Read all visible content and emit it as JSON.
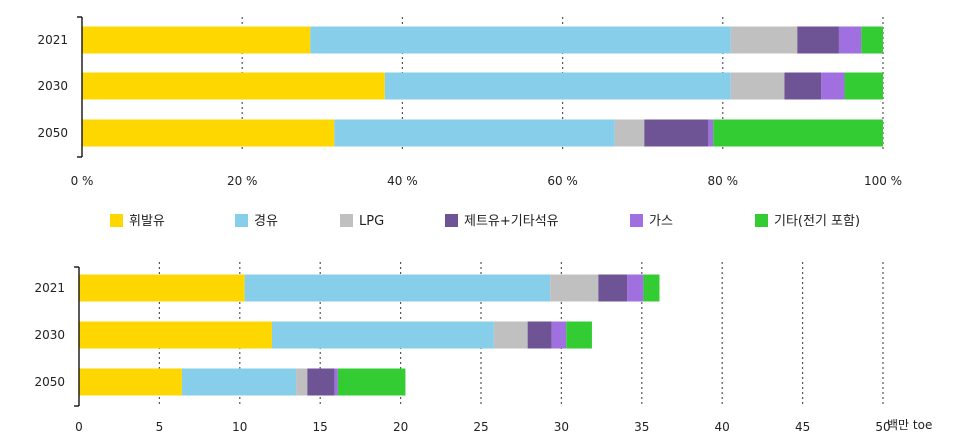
{
  "legend": [
    {
      "label": "휘발유",
      "color": "#FFD700"
    },
    {
      "label": "경유",
      "color": "#87CEEB"
    },
    {
      "label": "LPG",
      "color": "#C0C0C0"
    },
    {
      "label": "제트유+기타석유",
      "color": "#6E5494"
    },
    {
      "label": "가스",
      "color": "#A070E0"
    },
    {
      "label": "기타(전기 포함)",
      "color": "#33CC33"
    }
  ],
  "chart_data": [
    {
      "type": "bar",
      "orientation": "horizontal",
      "stacked": true,
      "categories": [
        "2021",
        "2030",
        "2050"
      ],
      "xlim": [
        0,
        100
      ],
      "xticks": [
        "0 %",
        "20 %",
        "40 %",
        "60 %",
        "80 %",
        "100 %"
      ],
      "grid": true,
      "series": [
        {
          "name": "휘발유",
          "values": [
            28.5,
            37.8,
            31.5
          ]
        },
        {
          "name": "경유",
          "values": [
            52.5,
            43.2,
            35.0
          ]
        },
        {
          "name": "LPG",
          "values": [
            8.3,
            6.7,
            3.7
          ]
        },
        {
          "name": "제트유+기타석유",
          "values": [
            5.2,
            4.6,
            8.0
          ]
        },
        {
          "name": "가스",
          "values": [
            2.8,
            2.9,
            0.6
          ]
        },
        {
          "name": "기타(전기 포함)",
          "values": [
            2.7,
            4.8,
            21.2
          ]
        }
      ]
    },
    {
      "type": "bar",
      "orientation": "horizontal",
      "stacked": true,
      "categories": [
        "2021",
        "2030",
        "2050"
      ],
      "xlim": [
        0,
        50
      ],
      "xticks": [
        "0",
        "5",
        "10",
        "15",
        "20",
        "25",
        "30",
        "35",
        "40",
        "45",
        "50"
      ],
      "xlabel": "백만 toe",
      "grid": true,
      "series": [
        {
          "name": "휘발유",
          "values": [
            10.3,
            12.0,
            6.4
          ]
        },
        {
          "name": "경유",
          "values": [
            19.0,
            13.8,
            7.1
          ]
        },
        {
          "name": "LPG",
          "values": [
            3.0,
            2.1,
            0.7
          ]
        },
        {
          "name": "제트유+기타석유",
          "values": [
            1.8,
            1.5,
            1.7
          ]
        },
        {
          "name": "가스",
          "values": [
            1.0,
            0.9,
            0.2
          ]
        },
        {
          "name": "기타(전기 포함)",
          "values": [
            1.0,
            1.6,
            4.2
          ]
        }
      ]
    }
  ]
}
